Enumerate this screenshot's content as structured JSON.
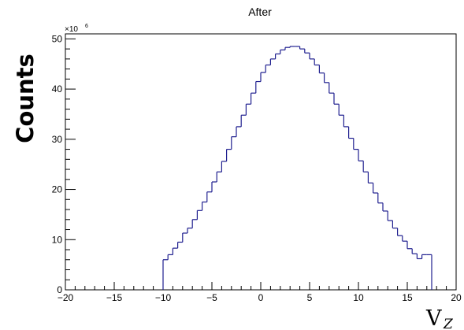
{
  "chart_data": {
    "type": "histogram",
    "title": "After",
    "ylabel": "Counts",
    "xlabel": {
      "main": "V",
      "sub": "Z"
    },
    "y_multiplier": {
      "base": "×10",
      "exponent": "6"
    },
    "xlim": [
      -20,
      20
    ],
    "ylim": [
      0,
      51
    ],
    "x_ticks": [
      -20,
      -15,
      -10,
      -5,
      0,
      5,
      10,
      15,
      20
    ],
    "y_ticks": [
      0,
      10,
      20,
      30,
      40,
      50
    ],
    "bin_width": 0.5,
    "bin_edges_start": -10,
    "bin_values": [
      6.0,
      7.0,
      8.3,
      9.5,
      11.3,
      12.3,
      14.0,
      15.8,
      17.5,
      19.5,
      21.5,
      23.5,
      25.6,
      28.0,
      30.5,
      32.5,
      34.8,
      37.0,
      39.2,
      41.5,
      43.3,
      44.8,
      46.0,
      47.0,
      47.8,
      48.3,
      48.5,
      48.5,
      48.0,
      47.2,
      46.0,
      44.8,
      43.2,
      41.3,
      39.2,
      37.0,
      34.8,
      32.5,
      30.2,
      28.0,
      25.7,
      23.5,
      21.3,
      19.3,
      17.3,
      15.7,
      13.8,
      12.3,
      10.8,
      9.7,
      8.2,
      7.2,
      6.2,
      7.0,
      7.0
    ],
    "line_color": "#1f1f8f",
    "grid": false,
    "legend": "none"
  }
}
